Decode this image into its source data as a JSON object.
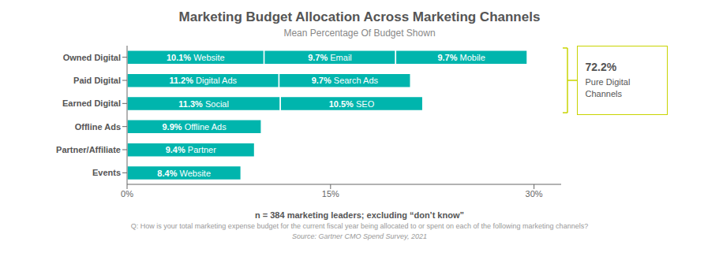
{
  "chart_data": {
    "type": "bar",
    "orientation": "horizontal",
    "stacked": true,
    "title": "Marketing Budget Allocation Across Marketing Channels",
    "subtitle": "Mean Percentage Of Budget Shown",
    "categories": [
      "Owned Digital",
      "Paid Digital",
      "Earned Digital",
      "Offline Ads",
      "Partner/Affiliate",
      "Events"
    ],
    "color": "#00B5AD",
    "series": [
      {
        "values": [
          10.1,
          11.2,
          11.3,
          9.9,
          9.4,
          8.4
        ],
        "value_labels": [
          "10.1% Website",
          "11.2% Digital Ads",
          "11.3% Social",
          "9.9% Offline Ads",
          "9.4% Partner",
          "8.4% Website"
        ]
      },
      {
        "values": [
          9.7,
          9.7,
          10.5,
          null,
          null,
          null
        ],
        "value_labels": [
          "9.7% Email",
          "9.7% Search Ads",
          "10.5% SEO",
          null,
          null,
          null
        ]
      },
      {
        "values": [
          9.7,
          null,
          null,
          null,
          null,
          null
        ],
        "value_labels": [
          "9.7% Mobile",
          null,
          null,
          null,
          null,
          null
        ]
      }
    ],
    "data_labels": true,
    "xlim": [
      0,
      32
    ],
    "xticks": [
      {
        "value": 0,
        "label": "0%"
      },
      {
        "value": 15,
        "label": "15%"
      },
      {
        "value": 30,
        "label": "30%"
      }
    ],
    "grid": false,
    "annotation": {
      "title": "72.2%",
      "text": "Pure Digital\nChannels",
      "color": "#c8d400",
      "categories": [
        "Owned Digital",
        "Paid Digital",
        "Earned Digital"
      ]
    },
    "footnotes": [
      "n = 384 marketing leaders; excluding “don’t know”",
      "Q: How is your total marketing expense budget for the current fiscal year being allocated to or spent on each of the following marketing channels?",
      "Source: Gartner CMO Spend Survey, 2021"
    ]
  }
}
